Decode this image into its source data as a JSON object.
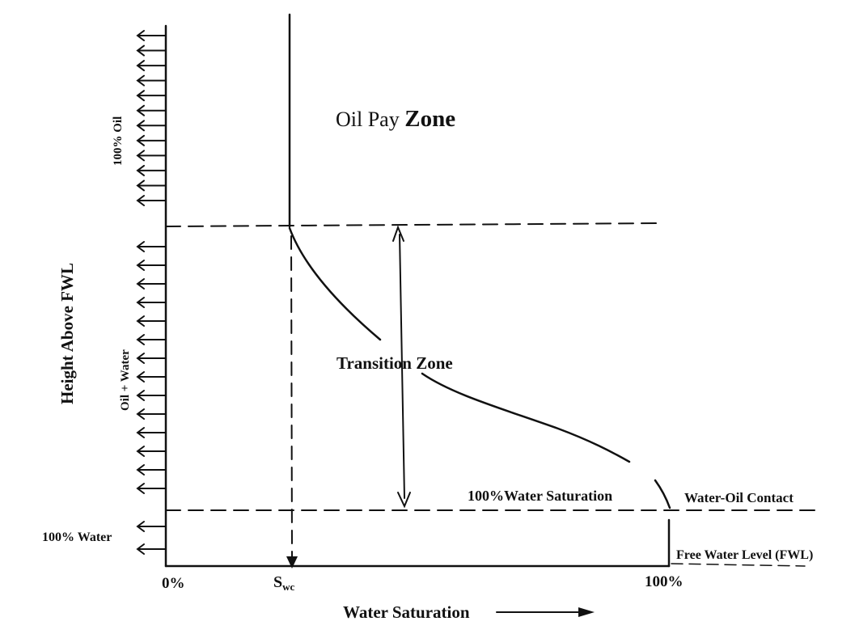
{
  "diagram": {
    "y_axis_title": "Height Above FWL",
    "x_axis_title": "Water Saturation",
    "x_ticks": {
      "zero": "0%",
      "hundred": "100%"
    },
    "swc": {
      "main": "S",
      "sub": "wc"
    },
    "zones": {
      "oil_pay": {
        "prefix": "Oil Pay ",
        "emph": "Zone"
      },
      "transition": "Transition Zone"
    },
    "labels": {
      "water_saturation_100": "100%Water Saturation",
      "water_oil_contact": "Water-Oil Contact",
      "free_water_level": "Free Water Level (FWL)"
    },
    "side_labels": {
      "oil": "100% Oil",
      "oil_water": "Oil + Water",
      "water": "100% Water"
    },
    "arrow_counts": {
      "oil": 12,
      "oil_water": 14,
      "water": 2
    }
  }
}
